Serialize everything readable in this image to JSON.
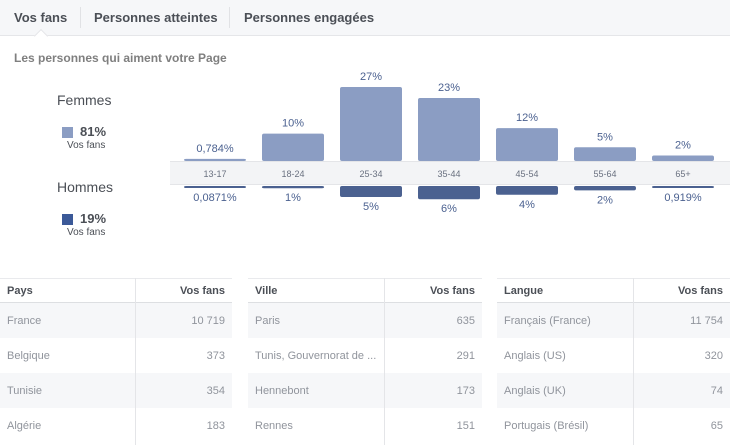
{
  "tabs": [
    {
      "label": "Vos fans",
      "active": true
    },
    {
      "label": "Personnes atteintes"
    },
    {
      "label": "Personnes engagées"
    }
  ],
  "subtitle": "Les personnes qui aiment votre Page",
  "legend": {
    "women": {
      "label": "Femmes",
      "percent": "81%",
      "sub": "Vos fans",
      "color": "#8b9dc3"
    },
    "men": {
      "label": "Hommes",
      "percent": "19%",
      "sub": "Vos fans",
      "color": "#3b5998"
    }
  },
  "chart_data": {
    "type": "bar",
    "categories": [
      "13-17",
      "18-24",
      "25-34",
      "35-44",
      "45-54",
      "55-64",
      "65+"
    ],
    "series": [
      {
        "name": "Femmes",
        "values": [
          0.784,
          10,
          27,
          23,
          12,
          5,
          2
        ],
        "labels": [
          "0,784%",
          "10%",
          "27%",
          "23%",
          "12%",
          "5%",
          "2%"
        ],
        "color": "#8b9dc3"
      },
      {
        "name": "Hommes",
        "values": [
          0.0871,
          1,
          5,
          6,
          4,
          2,
          0.919
        ],
        "labels": [
          "0,0871%",
          "1%",
          "5%",
          "6%",
          "4%",
          "2%",
          "0,919%"
        ],
        "color": "#4b6190"
      }
    ]
  },
  "tables": [
    {
      "col1": "Pays",
      "col2": "Vos fans",
      "rows": [
        [
          "France",
          "10 719"
        ],
        [
          "Belgique",
          "373"
        ],
        [
          "Tunisie",
          "354"
        ],
        [
          "Algérie",
          "183"
        ]
      ]
    },
    {
      "col1": "Ville",
      "col2": "Vos fans",
      "rows": [
        [
          "Paris",
          "635"
        ],
        [
          "Tunis, Gouvernorat de ...",
          "291"
        ],
        [
          "Hennebont",
          "173"
        ],
        [
          "Rennes",
          "151"
        ]
      ]
    },
    {
      "col1": "Langue",
      "col2": "Vos fans",
      "rows": [
        [
          "Français (France)",
          "11 754"
        ],
        [
          "Anglais (US)",
          "320"
        ],
        [
          "Anglais (UK)",
          "74"
        ],
        [
          "Portugais (Brésil)",
          "65"
        ]
      ]
    }
  ]
}
